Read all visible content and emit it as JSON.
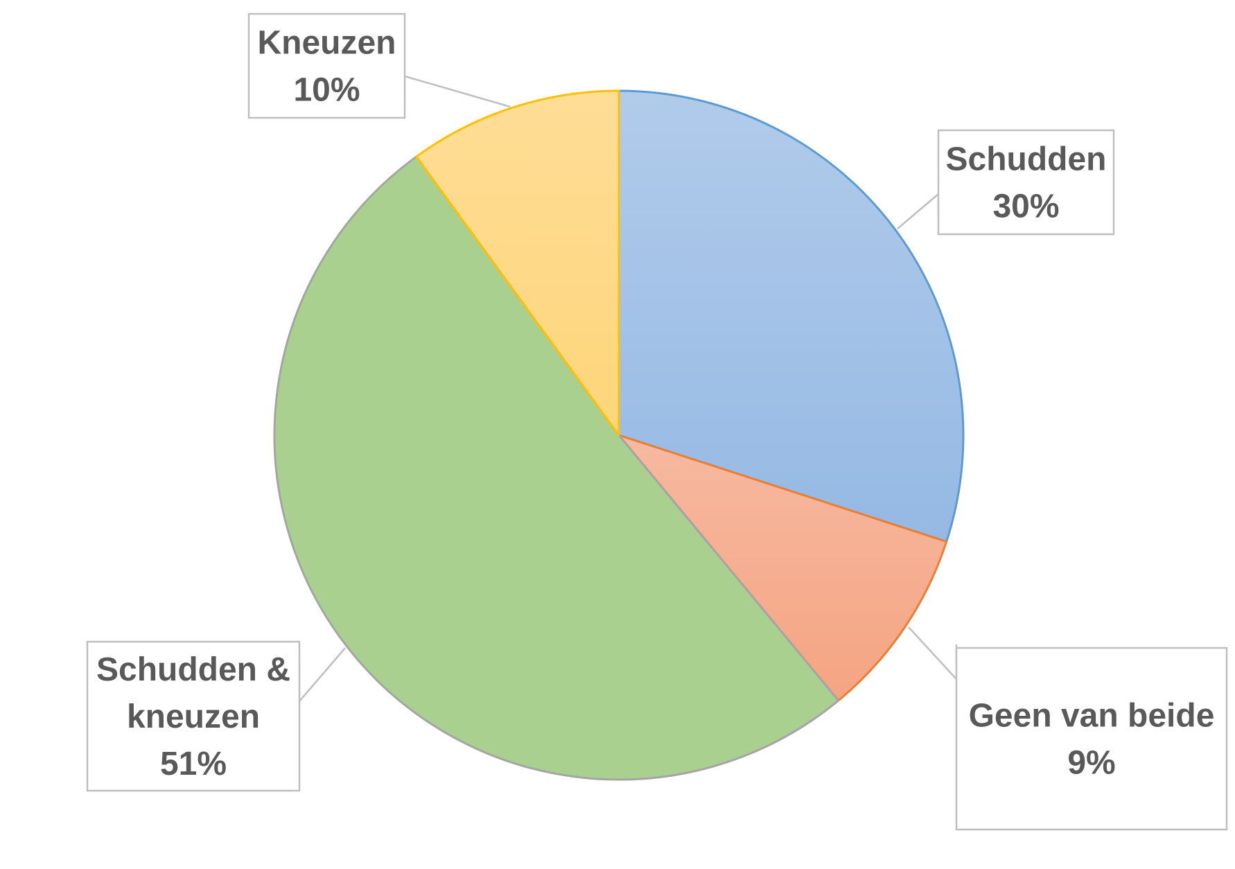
{
  "chart_data": {
    "type": "pie",
    "title": "",
    "slices": [
      {
        "label_lines": [
          "Schudden"
        ],
        "value": 30,
        "value_label": "30%",
        "color": "#9dbde6",
        "stroke": "#5b9bd5",
        "gradient_top": "#b1cbea",
        "gradient_bottom": "#95b9e4"
      },
      {
        "label_lines": [
          "Geen van beide"
        ],
        "value": 9,
        "value_label": "9%",
        "color": "#f6ad8c",
        "stroke": "#ed7d31",
        "gradient_top": "#f6b9a0",
        "gradient_bottom": "#f5a482"
      },
      {
        "label_lines": [
          "Schudden &",
          "kneuzen"
        ],
        "value": 51,
        "value_label": "51%",
        "color": "#a9d08e",
        "stroke": "#a5a5a5",
        "gradient_top": "#a9d08e",
        "gradient_bottom": "#a9d08e"
      },
      {
        "label_lines": [
          "Kneuzen"
        ],
        "value": 10,
        "value_label": "10%",
        "color": "#fed982",
        "stroke": "#ffc000",
        "gradient_top": "#fedd96",
        "gradient_bottom": "#fed57a"
      }
    ],
    "start_angle": "12 o'clock",
    "direction": "clockwise",
    "data_labels": "callout boxes with category name and percentage",
    "legend": "none"
  }
}
